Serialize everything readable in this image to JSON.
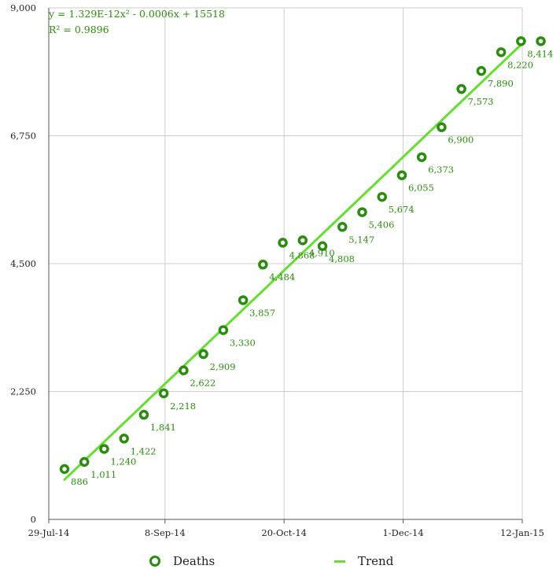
{
  "chart_data": {
    "type": "scatter",
    "x": [
      "29-Jul-14",
      "5-Aug-14",
      "12-Aug-14",
      "19-Aug-14",
      "26-Aug-14",
      "2-Sep-14",
      "9-Sep-14",
      "16-Sep-14",
      "23-Sep-14",
      "30-Sep-14",
      "7-Oct-14",
      "14-Oct-14",
      "21-Oct-14",
      "28-Oct-14",
      "4-Nov-14",
      "11-Nov-14",
      "18-Nov-14",
      "25-Nov-14",
      "2-Dec-14",
      "9-Dec-14",
      "16-Dec-14",
      "23-Dec-14",
      "30-Dec-14",
      "6-Jan-15",
      "13-Jan-15"
    ],
    "series": [
      {
        "name": "Deaths",
        "values": [
          886,
          1011,
          1240,
          1422,
          1841,
          2218,
          2622,
          2909,
          3330,
          3857,
          4484,
          4868,
          4910,
          4808,
          5147,
          5406,
          5674,
          6055,
          6373,
          6900,
          7573,
          7890,
          8220,
          8414,
          8414
        ],
        "labels": [
          "886",
          "1,011",
          "1,240",
          "1,422",
          "1,841",
          "2,218",
          "2,622",
          "2,909",
          "3,330",
          "3,857",
          "4,484",
          "4,868",
          "4,910",
          "4,808",
          "5,147",
          "5,406",
          "5,674",
          "6,055",
          "6,373",
          "6,900",
          "7,573",
          "7,890",
          "8,220",
          "8,414",
          ""
        ]
      },
      {
        "name": "Trend",
        "x_range": [
          "29-Jul-14",
          "13-Jan-15"
        ],
        "values_at_ends": [
          700,
          8420
        ]
      }
    ],
    "x_ticks": [
      "29-Jul-14",
      "8-Sep-14",
      "20-Oct-14",
      "1-Dec-14",
      "12-Jan-15"
    ],
    "y_ticks": [
      "0",
      "2,250",
      "4,500",
      "6,750",
      "9,000"
    ],
    "ylim": [
      0,
      9000
    ],
    "equation": "y = 1.329E-12x² - 0.0006x + 15518",
    "r_squared": "R² = 0.9896",
    "grid": true,
    "legend_placement": "bottom",
    "colors": {
      "points": "#2e8b12",
      "trend": "#66dd33",
      "grid": "#cccccc"
    }
  },
  "legend": {
    "deaths_label": "Deaths",
    "trend_label": "Trend"
  }
}
